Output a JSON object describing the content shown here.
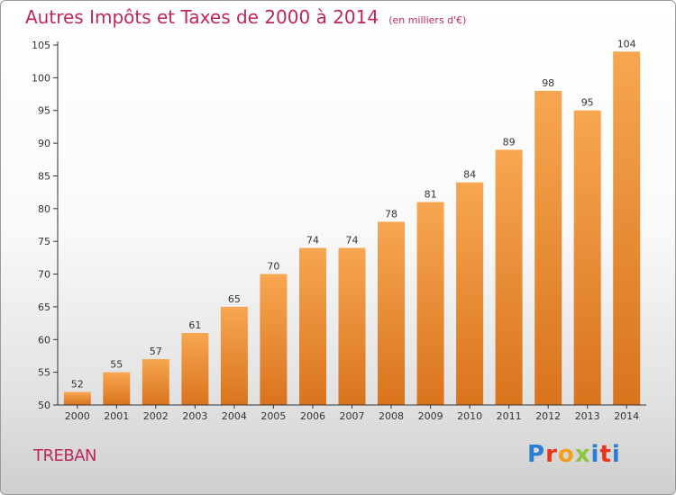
{
  "header": {
    "title": "Autres Impôts et Taxes de 2000 à 2014",
    "unit": "(en milliers d'€)"
  },
  "commune": "TREBAN",
  "logo": {
    "text": "Proxiti",
    "letters": [
      "P",
      "r",
      "o",
      "x",
      "i",
      "t",
      "i"
    ],
    "colors": [
      "#2a7fd4",
      "#e8351c",
      "#f2a01b",
      "#8cc63f",
      "#2a7fd4",
      "#e8351c",
      "#2a7fd4"
    ]
  },
  "colors": {
    "bar_top": "#f7a651",
    "bar_bottom": "#d9741d",
    "axis": "#333333",
    "text": "#333333",
    "accent": "#c0265e"
  },
  "chart_data": {
    "type": "bar",
    "title": "Autres Impôts et Taxes de 2000 à 2014",
    "subtitle": "(en milliers d'€)",
    "xlabel": "",
    "ylabel": "",
    "categories": [
      "2000",
      "2001",
      "2002",
      "2003",
      "2004",
      "2005",
      "2006",
      "2007",
      "2008",
      "2009",
      "2010",
      "2011",
      "2012",
      "2013",
      "2014"
    ],
    "values": [
      52,
      55,
      57,
      61,
      65,
      70,
      74,
      74,
      78,
      81,
      84,
      89,
      98,
      95,
      104
    ],
    "ylim": [
      50,
      105
    ],
    "yticks": [
      50,
      55,
      60,
      65,
      70,
      75,
      80,
      85,
      90,
      95,
      100,
      105
    ],
    "grid": false,
    "data_labels": true
  }
}
